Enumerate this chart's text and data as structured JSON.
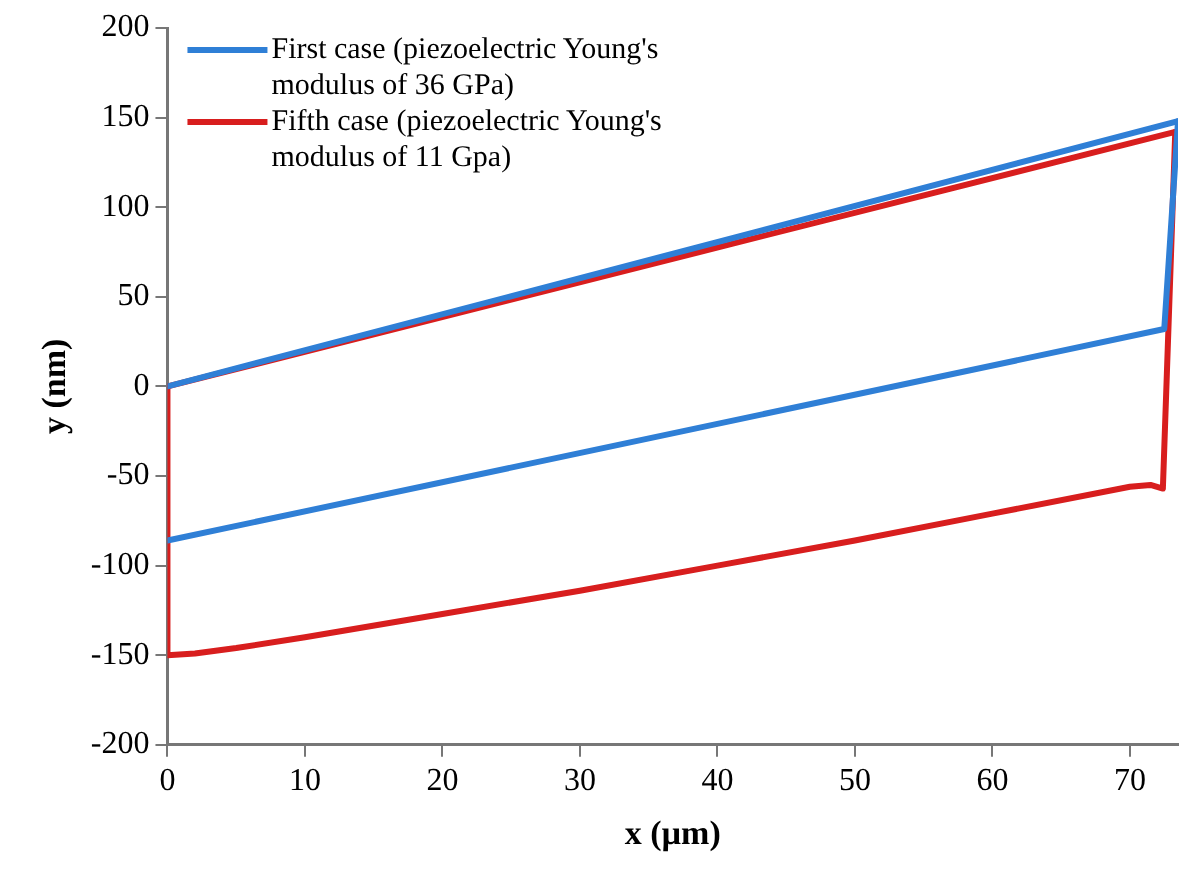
{
  "chart_data": {
    "type": "line",
    "xlabel": "x (µm)",
    "ylabel": "y (nm)",
    "xlim": [
      0,
      73.5
    ],
    "xticks": [
      0,
      10,
      20,
      30,
      40,
      50,
      60,
      70
    ],
    "ylim": [
      -200,
      200
    ],
    "yticks": [
      -200,
      -150,
      -100,
      -50,
      0,
      50,
      100,
      150,
      200
    ],
    "grid": false,
    "legend": "top left",
    "marker": "none",
    "line_style": "solid",
    "series": [
      {
        "name": "First case (piezoelectric Young's modulus of 36 GPa)",
        "color": "#2f7fd6",
        "x": [
          0,
          73.5
        ],
        "values": [
          0,
          148
        ]
      },
      {
        "color": "#2f7fd6",
        "x": [
          0,
          72.5,
          73.5
        ],
        "values": [
          -86,
          32,
          148
        ]
      },
      {
        "name": "Fifth case (piezoelectric Young's modulus of 11 Gpa)",
        "color": "#d81e1e",
        "x": [
          0,
          73.3
        ],
        "values": [
          0,
          142
        ]
      },
      {
        "color": "#d81e1e",
        "x": [
          0,
          0,
          2,
          5,
          10,
          20,
          30,
          40,
          50,
          60,
          70,
          71.5,
          72.4,
          73.3
        ],
        "values": [
          0,
          -150,
          -149,
          -146,
          -140,
          -127,
          -114,
          -100,
          -86,
          -71,
          -56,
          -55,
          -57,
          142
        ]
      }
    ]
  }
}
